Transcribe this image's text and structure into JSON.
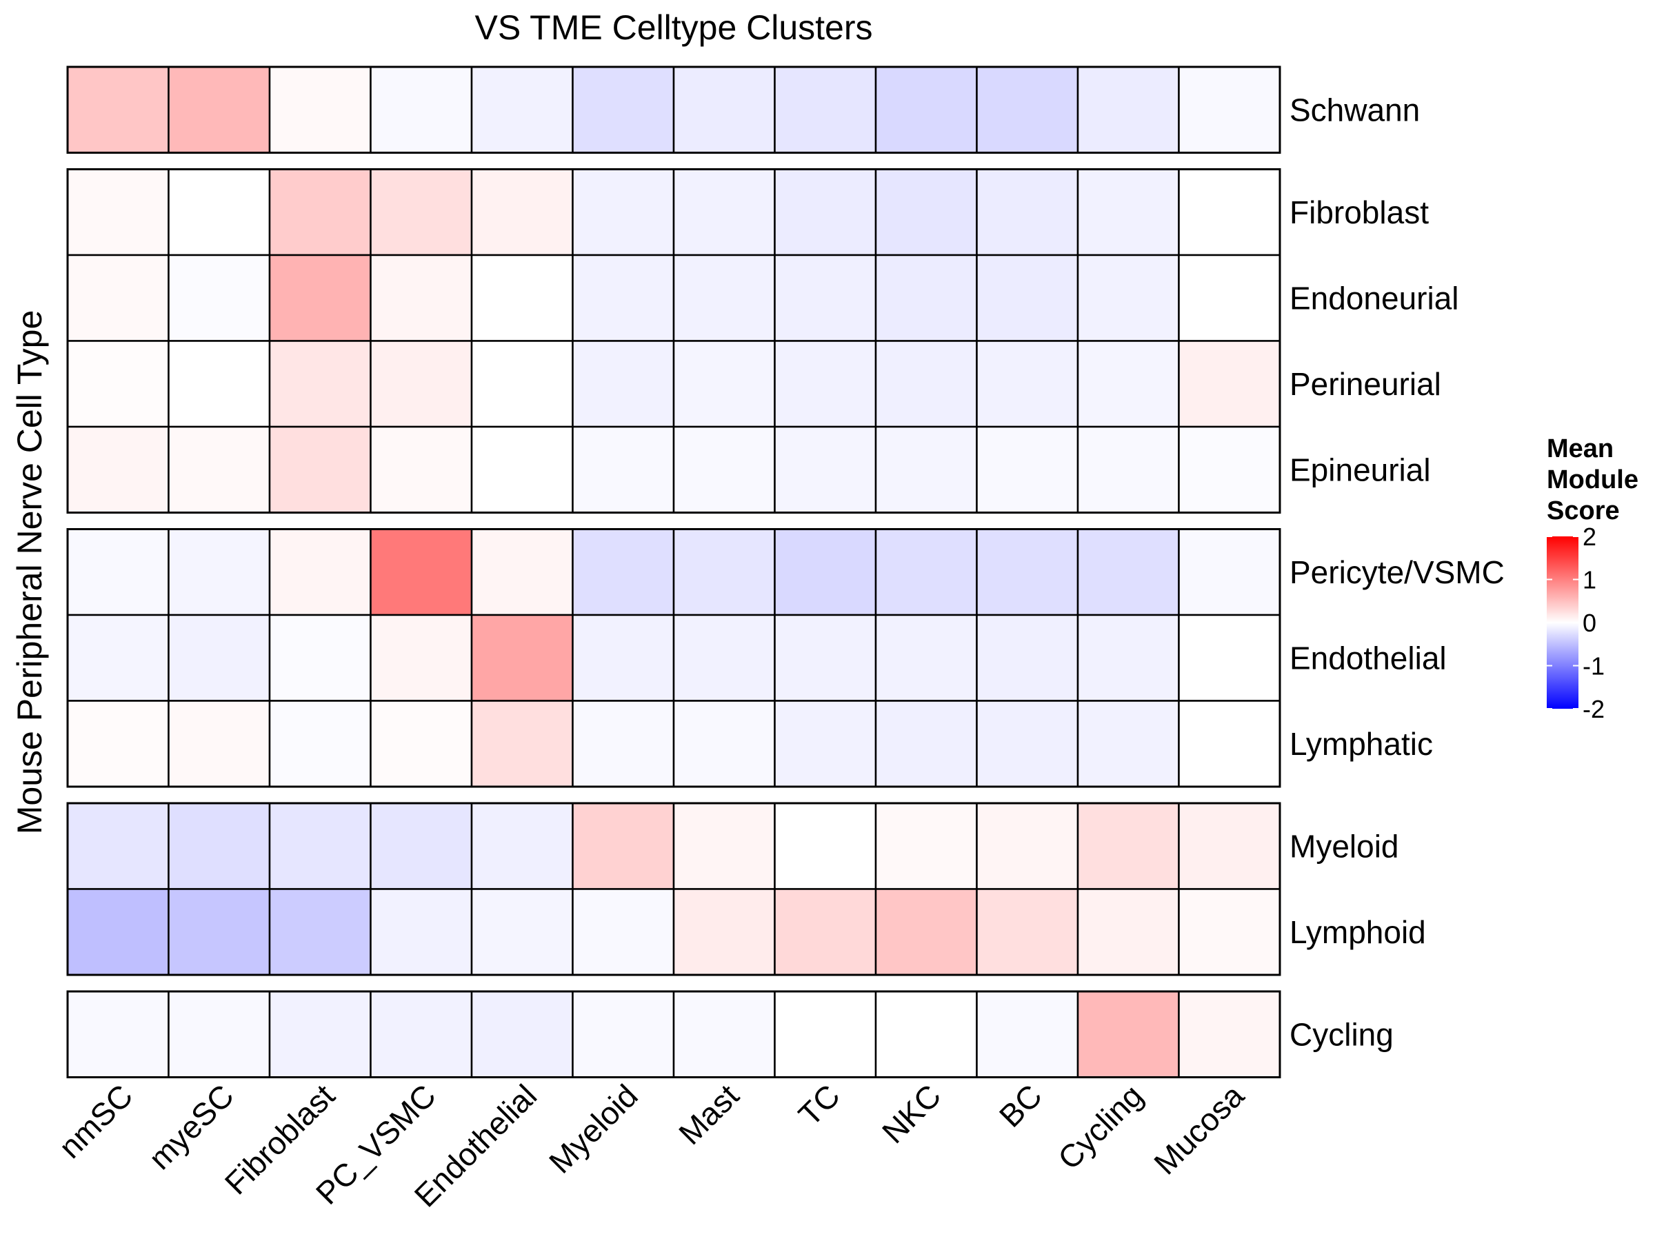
{
  "chart_data": {
    "type": "heatmap",
    "title": "VS TME Celltype Clusters",
    "xlabel": "",
    "ylabel": "Mouse Peripheral Nerve Cell Type",
    "x_categories": [
      "nmSC",
      "myeSC",
      "Fibroblast",
      "PC_VSMC",
      "Endothelial",
      "Myeloid",
      "Mast",
      "TC",
      "NKC",
      "BC",
      "Cycling",
      "Mucosa"
    ],
    "row_groups": [
      {
        "rows": [
          "Schwann"
        ]
      },
      {
        "rows": [
          "Fibroblast",
          "Endoneurial",
          "Perineurial",
          "Epineurial"
        ]
      },
      {
        "rows": [
          "Pericyte/VSMC",
          "Endothelial",
          "Lymphatic"
        ]
      },
      {
        "rows": [
          "Myeloid",
          "Lymphoid"
        ]
      },
      {
        "rows": [
          "Cycling"
        ]
      }
    ],
    "values": [
      [
        0.45,
        0.55,
        0.05,
        -0.05,
        -0.1,
        -0.25,
        -0.15,
        -0.2,
        -0.3,
        -0.3,
        -0.15,
        -0.05
      ],
      [
        0.05,
        0.0,
        0.4,
        0.25,
        0.1,
        -0.1,
        -0.1,
        -0.15,
        -0.2,
        -0.15,
        -0.1,
        0.0
      ],
      [
        0.05,
        -0.03,
        0.6,
        0.08,
        0.0,
        -0.1,
        -0.1,
        -0.12,
        -0.15,
        -0.15,
        -0.1,
        0.0
      ],
      [
        0.02,
        0.0,
        0.2,
        0.12,
        0.0,
        -0.1,
        -0.08,
        -0.1,
        -0.12,
        -0.1,
        -0.08,
        0.12
      ],
      [
        0.08,
        0.05,
        0.25,
        0.05,
        0.0,
        -0.05,
        -0.05,
        -0.08,
        -0.08,
        -0.05,
        -0.05,
        -0.03
      ],
      [
        -0.05,
        -0.08,
        0.08,
        1.05,
        0.08,
        -0.25,
        -0.2,
        -0.3,
        -0.25,
        -0.25,
        -0.25,
        -0.05
      ],
      [
        -0.08,
        -0.1,
        -0.03,
        0.08,
        0.7,
        -0.1,
        -0.1,
        -0.1,
        -0.1,
        -0.12,
        -0.1,
        0.0
      ],
      [
        0.03,
        0.05,
        -0.03,
        0.03,
        0.25,
        -0.05,
        -0.05,
        -0.1,
        -0.12,
        -0.12,
        -0.1,
        0.0
      ],
      [
        -0.2,
        -0.25,
        -0.2,
        -0.2,
        -0.12,
        0.35,
        0.08,
        0.0,
        0.05,
        0.08,
        0.25,
        0.12
      ],
      [
        -0.5,
        -0.45,
        -0.4,
        -0.1,
        -0.08,
        -0.05,
        0.15,
        0.3,
        0.45,
        0.25,
        0.1,
        0.05
      ],
      [
        -0.05,
        -0.05,
        -0.1,
        -0.1,
        -0.12,
        -0.05,
        -0.05,
        0.0,
        0.0,
        -0.05,
        0.55,
        0.08
      ]
    ],
    "color_scale": {
      "min": -2,
      "max": 2,
      "low": "#0000ff",
      "mid": "#ffffff",
      "high": "#ff0000",
      "ticks": [
        2,
        1,
        0,
        -1,
        -2
      ]
    },
    "legend": {
      "title_lines": [
        "Mean",
        "Module",
        "Score"
      ],
      "position": "right"
    },
    "grid": false
  }
}
